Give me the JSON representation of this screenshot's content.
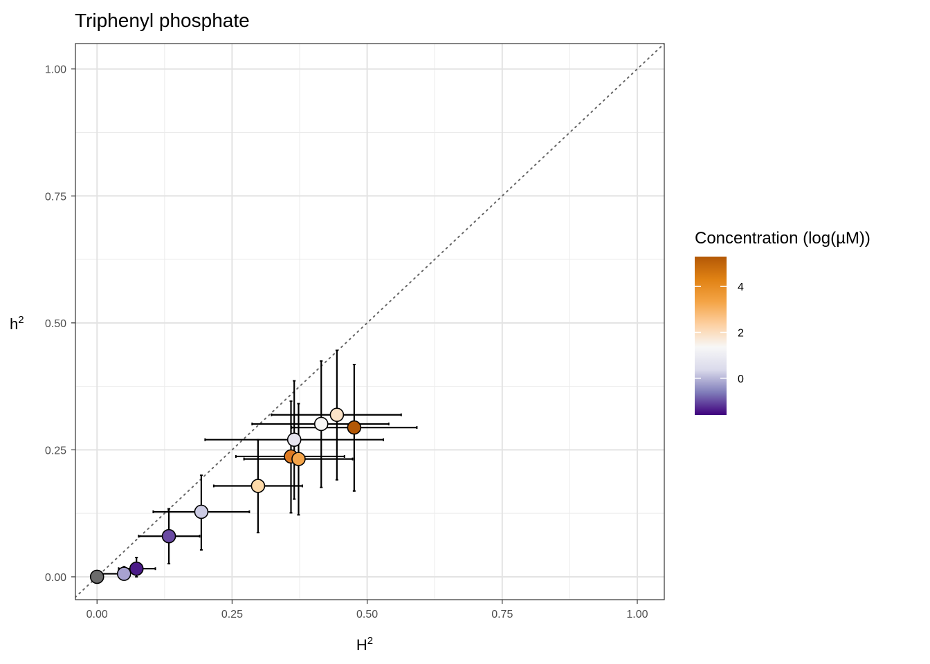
{
  "chart_data": {
    "type": "scatter",
    "title": "Triphenyl phosphate",
    "xlabel": "H",
    "xlabel_superscript": "2",
    "ylabel": "h",
    "ylabel_superscript": "2",
    "xlim": [
      -0.04,
      1.05
    ],
    "ylim": [
      -0.045,
      1.05
    ],
    "x_ticks": [
      0.0,
      0.25,
      0.5,
      0.75,
      1.0
    ],
    "x_tick_labels": [
      "0.00",
      "0.25",
      "0.50",
      "0.75",
      "1.00"
    ],
    "y_ticks": [
      0.0,
      0.25,
      0.5,
      0.75,
      1.0
    ],
    "y_tick_labels": [
      "0.00",
      "0.25",
      "0.50",
      "0.75",
      "1.00"
    ],
    "grid": true,
    "reference_line": {
      "slope": 1,
      "intercept": 0,
      "style": "dotted"
    },
    "legend": {
      "title": "Concentration (log(µM))",
      "position": "right",
      "range": [
        -1.6,
        5.3
      ],
      "ticks": [
        0,
        2,
        4
      ],
      "tick_labels": [
        "0",
        "2",
        "4"
      ],
      "gradient": [
        "#3f007d",
        "#807dba",
        "#dadaeb",
        "#f7f7f7",
        "#fdd0a2",
        "#f4a446",
        "#e08214",
        "#b35806"
      ]
    },
    "points": [
      {
        "H2": 0.0,
        "h2": 0.0,
        "H2_low": 0.0,
        "H2_high": 0.0,
        "h2_low": 0.0,
        "h2_high": 0.0,
        "conc": null,
        "color": "#6b6b6b"
      },
      {
        "H2": 0.05,
        "h2": 0.006,
        "H2_low": 0.0,
        "H2_high": 0.05,
        "h2_low": 0.0,
        "h2_high": 0.02,
        "conc": -0.3,
        "color": "#a8a2d0"
      },
      {
        "H2": 0.073,
        "h2": 0.016,
        "H2_low": 0.04,
        "H2_high": 0.108,
        "h2_low": 0.0,
        "h2_high": 0.038,
        "conc": -1.5,
        "color": "#4b1b88"
      },
      {
        "H2": 0.133,
        "h2": 0.08,
        "H2_low": 0.077,
        "H2_high": 0.19,
        "h2_low": 0.026,
        "h2_high": 0.134,
        "conc": -0.7,
        "color": "#6a4aa3"
      },
      {
        "H2": 0.193,
        "h2": 0.128,
        "H2_low": 0.104,
        "H2_high": 0.282,
        "h2_low": 0.053,
        "h2_high": 0.2,
        "conc": 0.8,
        "color": "#cccbe4"
      },
      {
        "H2": 0.298,
        "h2": 0.179,
        "H2_low": 0.216,
        "H2_high": 0.38,
        "h2_low": 0.087,
        "h2_high": 0.27,
        "conc": 3.0,
        "color": "#fdd9a8"
      },
      {
        "H2": 0.359,
        "h2": 0.237,
        "H2_low": 0.257,
        "H2_high": 0.458,
        "h2_low": 0.126,
        "h2_high": 0.346,
        "conc": 5.0,
        "color": "#de7a22"
      },
      {
        "H2": 0.373,
        "h2": 0.232,
        "H2_low": 0.272,
        "H2_high": 0.473,
        "h2_low": 0.122,
        "h2_high": 0.341,
        "conc": 4.2,
        "color": "#f5a54a"
      },
      {
        "H2": 0.365,
        "h2": 0.27,
        "H2_low": 0.2,
        "H2_high": 0.53,
        "h2_low": 0.153,
        "h2_high": 0.386,
        "conc": 1.6,
        "color": "#e7e5f0"
      },
      {
        "H2": 0.415,
        "h2": 0.301,
        "H2_low": 0.287,
        "H2_high": 0.54,
        "h2_low": 0.176,
        "h2_high": 0.425,
        "conc": 2.1,
        "color": "#f7f6f5"
      },
      {
        "H2": 0.444,
        "h2": 0.319,
        "H2_low": 0.323,
        "H2_high": 0.563,
        "h2_low": 0.191,
        "h2_high": 0.446,
        "conc": 2.6,
        "color": "#fce3c8"
      },
      {
        "H2": 0.476,
        "h2": 0.294,
        "H2_low": 0.36,
        "H2_high": 0.592,
        "h2_low": 0.169,
        "h2_high": 0.418,
        "conc": 5.3,
        "color": "#b35806"
      }
    ]
  }
}
